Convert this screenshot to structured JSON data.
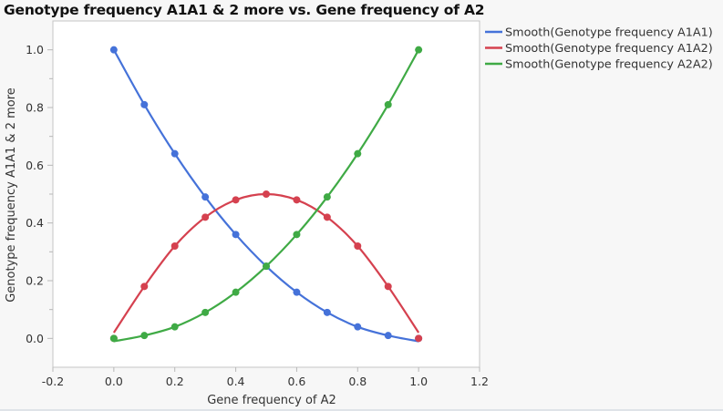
{
  "chart_data": {
    "type": "line",
    "title": "Genotype frequency A1A1 & 2 more vs. Gene frequency of A2",
    "xlabel": "Gene frequency of A2",
    "ylabel": "Genotype frequency A1A1 & 2 more",
    "xlim": [
      -0.2,
      1.2
    ],
    "ylim": [
      -0.1,
      1.1
    ],
    "xticks": [
      -0.2,
      0.0,
      0.2,
      0.4,
      0.6,
      0.8,
      1.0,
      1.2
    ],
    "xtick_labels": [
      "-0.2",
      "0.0",
      "0.2",
      "0.4",
      "0.6",
      "0.8",
      "1.0",
      "1.2"
    ],
    "yticks": [
      0.0,
      0.2,
      0.4,
      0.6,
      0.8,
      1.0
    ],
    "ytick_labels": [
      "0.0",
      "0.2",
      "0.4",
      "0.6",
      "0.8",
      "1.0"
    ],
    "grid": false,
    "legend_position": "right",
    "x": [
      0.0,
      0.1,
      0.2,
      0.3,
      0.4,
      0.5,
      0.6,
      0.7,
      0.8,
      0.9,
      1.0
    ],
    "series": [
      {
        "name": "Smooth(Genotype frequency A1A1)",
        "color": "#4572d9",
        "values": [
          1.0,
          0.81,
          0.64,
          0.49,
          0.36,
          0.25,
          0.16,
          0.09,
          0.04,
          0.01,
          0.0
        ],
        "smooth": [
          1.0,
          0.81,
          0.64,
          0.49,
          0.36,
          0.25,
          0.16,
          0.09,
          0.04,
          0.01,
          -0.01
        ]
      },
      {
        "name": "Smooth(Genotype frequency A1A2)",
        "color": "#d5414f",
        "values": [
          0.0,
          0.18,
          0.32,
          0.42,
          0.48,
          0.5,
          0.48,
          0.42,
          0.32,
          0.18,
          0.0
        ],
        "smooth": [
          0.02,
          0.18,
          0.32,
          0.42,
          0.48,
          0.5,
          0.48,
          0.42,
          0.32,
          0.18,
          0.02
        ]
      },
      {
        "name": "Smooth(Genotype frequency A2A2)",
        "color": "#3faa45",
        "values": [
          0.0,
          0.01,
          0.04,
          0.09,
          0.16,
          0.25,
          0.36,
          0.49,
          0.64,
          0.81,
          1.0
        ],
        "smooth": [
          -0.01,
          0.01,
          0.04,
          0.09,
          0.16,
          0.25,
          0.36,
          0.49,
          0.64,
          0.81,
          1.0
        ]
      }
    ]
  },
  "colors": {
    "background": "#f7f7f7",
    "plot_background": "#ffffff",
    "axis": "#b8b8b8",
    "text": "#333333"
  }
}
